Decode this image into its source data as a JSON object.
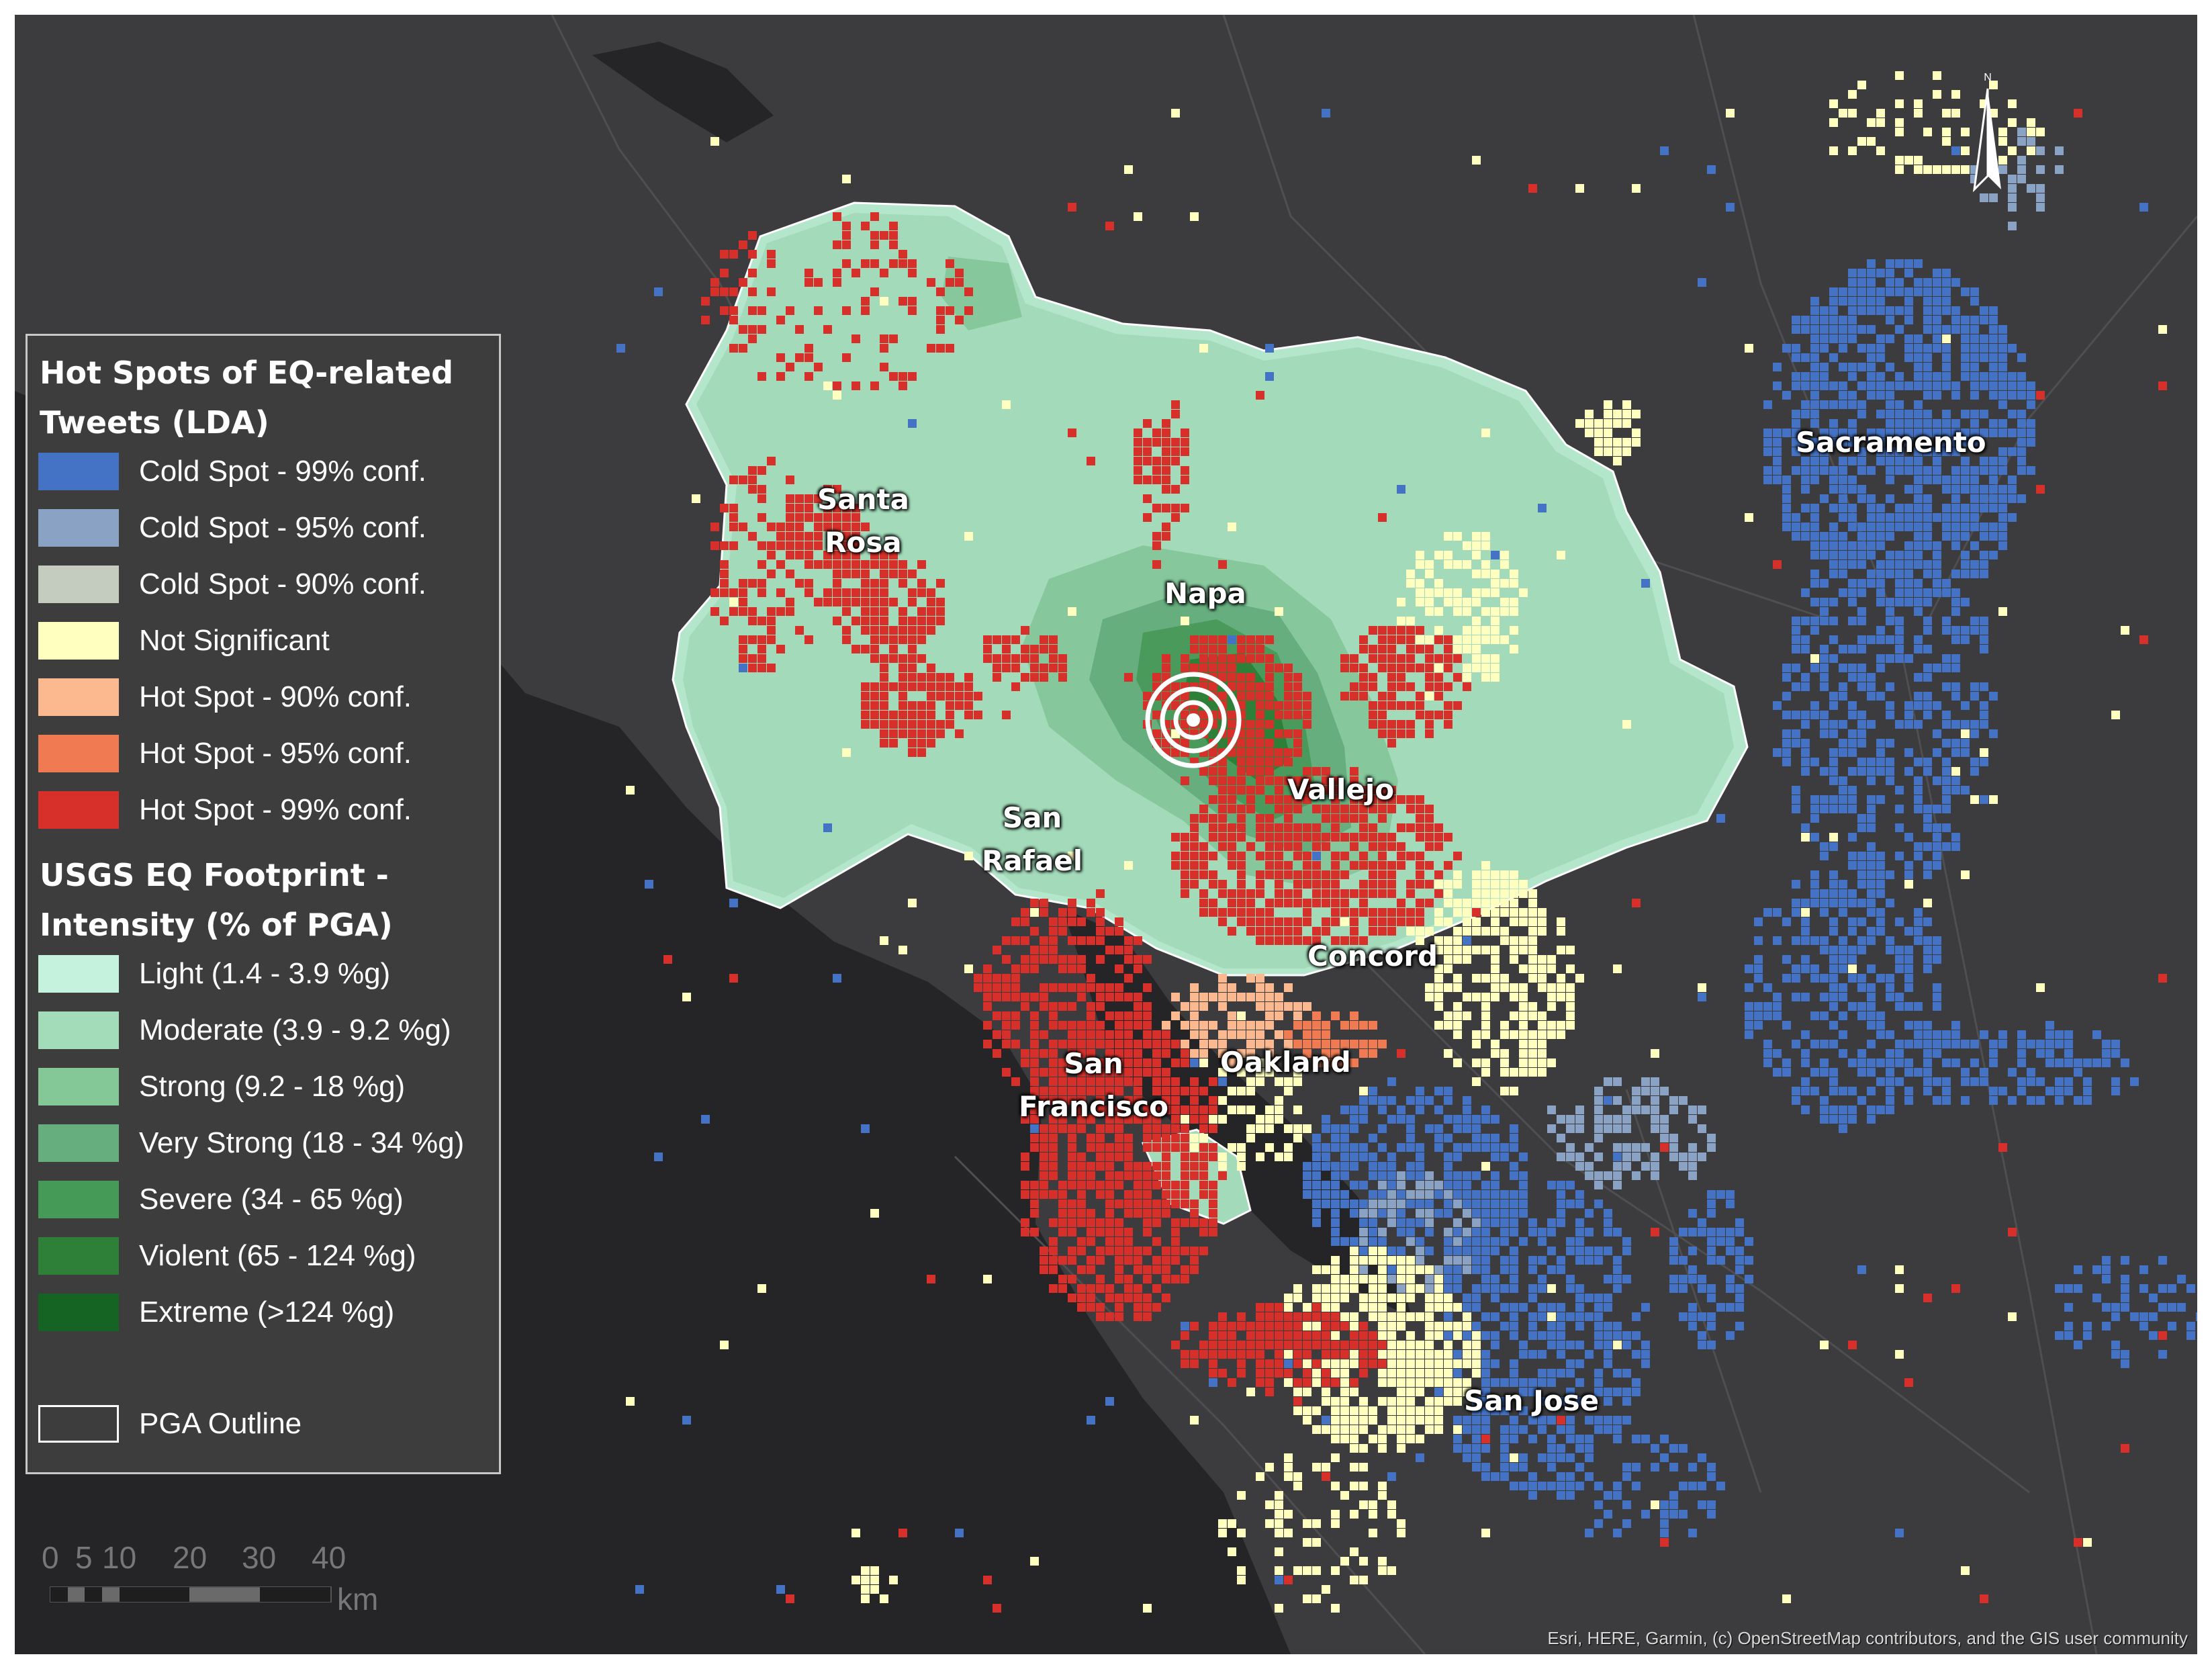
{
  "legend": {
    "hotspot_title": "Hot Spots of EQ-related Tweets (LDA)",
    "hotspot_items": [
      {
        "label": "Cold Spot - 99% conf.",
        "color": "#4472c4"
      },
      {
        "label": "Cold Spot - 95% conf.",
        "color": "#8aa2c4"
      },
      {
        "label": "Cold Spot - 90% conf.",
        "color": "#c4ccc0"
      },
      {
        "label": "Not Significant",
        "color": "#ffffbf"
      },
      {
        "label": "Hot Spot - 90% conf.",
        "color": "#fcb88e"
      },
      {
        "label": "Hot Spot - 95% conf.",
        "color": "#f07b52"
      },
      {
        "label": "Hot Spot - 99% conf.",
        "color": "#d7302a"
      }
    ],
    "usgs_title": "USGS EQ Footprint - Intensity (% of PGA)",
    "usgs_items": [
      {
        "label": "Light (1.4 - 3.9 %g)",
        "color": "#c4f2dc"
      },
      {
        "label": "Moderate (3.9 - 9.2 %g)",
        "color": "#a2dcb8"
      },
      {
        "label": "Strong (9.2 - 18 %g)",
        "color": "#84c898"
      },
      {
        "label": "Very Strong (18 - 34 %g)",
        "color": "#66ae7e"
      },
      {
        "label": "Severe (34 - 65 %g)",
        "color": "#469a58"
      },
      {
        "label": "Violent (65 - 124 %g)",
        "color": "#2e8038"
      },
      {
        "label": "Extreme (>124 %g)",
        "color": "#156424"
      }
    ],
    "outline_label": "PGA Outline"
  },
  "cities": [
    {
      "key": "santa_rosa",
      "text": "Santa\nRosa"
    },
    {
      "key": "napa",
      "text": "Napa"
    },
    {
      "key": "vallejo",
      "text": "Vallejo"
    },
    {
      "key": "san_rafael",
      "text": "San\nRafael"
    },
    {
      "key": "concord",
      "text": "Concord"
    },
    {
      "key": "oakland",
      "text": "Oakland"
    },
    {
      "key": "san_francisco",
      "text": "San\nFrancisco"
    },
    {
      "key": "san_jose",
      "text": "San Jose"
    },
    {
      "key": "sacramento",
      "text": "Sacramento"
    }
  ],
  "scale_bar": {
    "ticks": [
      "0",
      "5",
      "10",
      "20",
      "30",
      "40"
    ],
    "unit": "km"
  },
  "north_arrow": {
    "label": "N"
  },
  "attribution": "Esri, HERE, Garmin, (c) OpenStreetMap contributors, and the GIS user community",
  "colors": {
    "water": "#252527",
    "land": "#3c3c3e",
    "roads": "#4f4f52",
    "pga_outline": "#ffffff",
    "epicenter": "#ffffff"
  }
}
